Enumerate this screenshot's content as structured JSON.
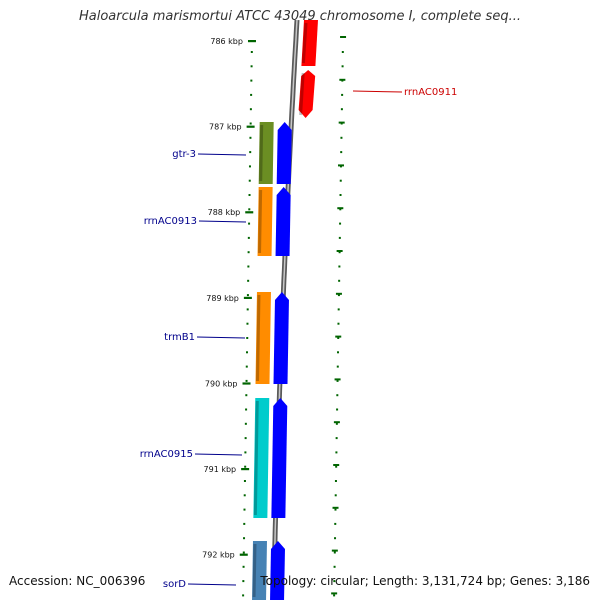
{
  "title": "Haloarcula marismortui ATCC 43049 chromosome I, complete seq...",
  "footer": {
    "accession": "Accession: NC_006396",
    "summary": "Topology: circular; Length: 3,131,724 bp; Genes: 3,186"
  },
  "scale": {
    "unit": "kbp",
    "ticks": [
      {
        "kbp": 786,
        "label": "786 kbp"
      },
      {
        "kbp": 787,
        "label": "787 kbp"
      },
      {
        "kbp": 788,
        "label": "788 kbp"
      },
      {
        "kbp": 789,
        "label": "789 kbp"
      },
      {
        "kbp": 790,
        "label": "790 kbp"
      },
      {
        "kbp": 791,
        "label": "791 kbp"
      },
      {
        "kbp": 792,
        "label": "792 kbp"
      }
    ]
  },
  "genes": [
    {
      "name": "rrnAC0911",
      "strand": "forward",
      "color": "#ff0000",
      "label_color": "#cc0000"
    },
    {
      "name": "gtr-3",
      "strand": "reverse",
      "color": "#6b8e23",
      "label_color": "#00008b"
    },
    {
      "name": "rrnAC0913",
      "strand": "reverse",
      "color": "#ff8c00",
      "label_color": "#00008b"
    },
    {
      "name": "trmB1",
      "strand": "reverse",
      "color": "#ff8c00",
      "label_color": "#00008b"
    },
    {
      "name": "rrnAC0915",
      "strand": "reverse",
      "color": "#00cccc",
      "label_color": "#00008b"
    },
    {
      "name": "sorD",
      "strand": "reverse",
      "color": "#4682b4",
      "label_color": "#00008b"
    }
  ],
  "colors": {
    "cds_blue": "#0000ff",
    "tick_green": "#006400",
    "backbone": "#808080",
    "reverse_label_line": "#00008b",
    "forward_label_line": "#cc0000"
  }
}
